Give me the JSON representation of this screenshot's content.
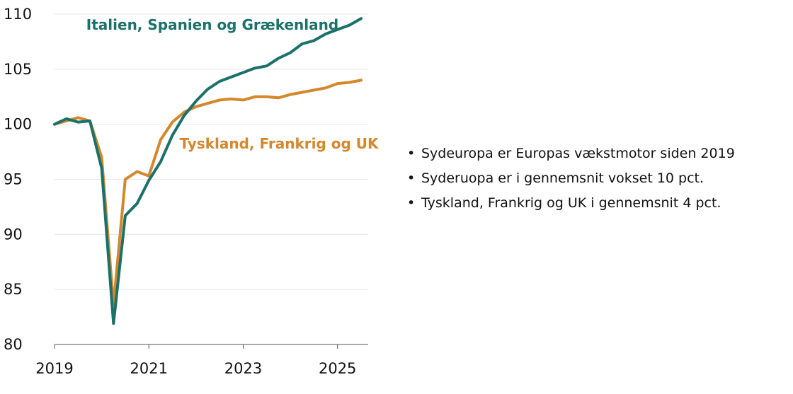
{
  "chart_data": {
    "type": "line",
    "xlim": [
      2019,
      2025.65
    ],
    "ylim": [
      80,
      110
    ],
    "y_ticks": [
      80,
      85,
      90,
      95,
      100,
      105,
      110
    ],
    "x_ticks": [
      2019,
      2021,
      2023,
      2025
    ],
    "grid": "horizontal",
    "x": [
      2019.0,
      2019.25,
      2019.5,
      2019.75,
      2020.0,
      2020.25,
      2020.5,
      2020.75,
      2021.0,
      2021.25,
      2021.5,
      2021.75,
      2022.0,
      2022.25,
      2022.5,
      2022.75,
      2023.0,
      2023.25,
      2023.5,
      2023.75,
      2024.0,
      2024.25,
      2024.5,
      2024.75,
      2025.0,
      2025.25,
      2025.5
    ],
    "series": [
      {
        "name": "Italien, Spanien og Grækenland",
        "color": "#1a7169",
        "values": [
          100.0,
          100.5,
          100.2,
          100.3,
          96.0,
          81.9,
          91.7,
          92.8,
          94.9,
          96.6,
          99.0,
          100.8,
          102.1,
          103.2,
          103.9,
          104.3,
          104.7,
          105.1,
          105.3,
          106.0,
          106.5,
          107.3,
          107.6,
          108.2,
          108.6,
          109.0,
          109.6
        ]
      },
      {
        "name": "Tyskland, Frankrig og UK",
        "color": "#d4872c",
        "values": [
          100.0,
          100.3,
          100.6,
          100.3,
          97.0,
          83.6,
          95.0,
          95.7,
          95.3,
          98.6,
          100.2,
          101.1,
          101.6,
          101.9,
          102.2,
          102.3,
          102.2,
          102.5,
          102.5,
          102.4,
          102.7,
          102.9,
          103.1,
          103.3,
          103.7,
          103.8,
          104.0
        ]
      }
    ]
  },
  "bullets": [
    "Sydeuropa er Europas vækstmotor siden 2019",
    "Syderuopa er i gennemsnit vokset 10 pct.",
    "Tyskland, Frankrig og UK i gennemsnit 4 pct."
  ]
}
